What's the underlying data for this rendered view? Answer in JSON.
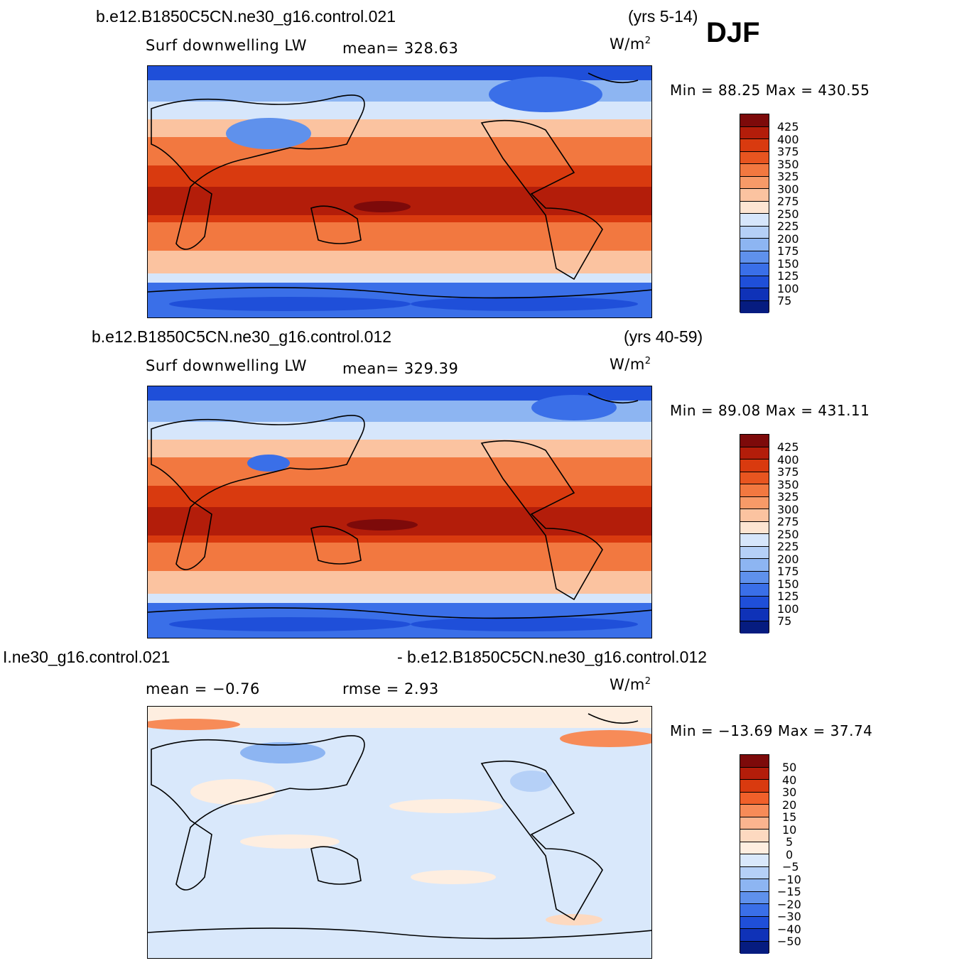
{
  "season": "DJF",
  "panels": [
    {
      "case": "b.e12.B1850C5CN.ne30_g16.control.021",
      "years": "(yrs 5-14)",
      "variable": "Surf  downwelling LW",
      "stat_text": "mean=  328.63",
      "units": "W/m",
      "units_sup": "2",
      "minmax": "Min  =    88.25  Max  =  430.55",
      "colorbar_labels": [
        "425",
        "400",
        "375",
        "350",
        "325",
        "300",
        "275",
        "250",
        "225",
        "200",
        "175",
        "150",
        "125",
        "100",
        "75"
      ]
    },
    {
      "case": "b.e12.B1850C5CN.ne30_g16.control.012",
      "years": "(yrs 40-59)",
      "variable": "Surf  downwelling LW",
      "stat_text": "mean=  329.39",
      "units": "W/m",
      "units_sup": "2",
      "minmax": "Min  =    89.08  Max  =  431.11",
      "colorbar_labels": [
        "425",
        "400",
        "375",
        "350",
        "325",
        "300",
        "275",
        "250",
        "225",
        "200",
        "175",
        "150",
        "125",
        "100",
        "75"
      ]
    },
    {
      "case_left": "І.ne30_g16.control.021",
      "case_right": "- b.e12.B1850C5CN.ne30_g16.control.012",
      "mean_text": "mean  =    −0.76",
      "rmse_text": "rmse  =     2.93",
      "units": "W/m",
      "units_sup": "2",
      "minmax": "Min  =  −13.69  Max  =    37.74",
      "colorbar_labels": [
        "50",
        "40",
        "30",
        "20",
        "15",
        "10",
        "5",
        "0",
        "−5",
        "−10",
        "−15",
        "−20",
        "−30",
        "−40",
        "−50"
      ]
    }
  ],
  "colors": {
    "abs_scale": [
      "#7d0a0a",
      "#b31d0a",
      "#d93a0f",
      "#e85520",
      "#f27840",
      "#f79a68",
      "#fbc3a0",
      "#fde5d2",
      "#d6e6fb",
      "#b5d0f7",
      "#8db5f2",
      "#5f91ec",
      "#3a6fe8",
      "#1f4fd9",
      "#0f32b8",
      "#061c80"
    ],
    "diff_scale": [
      "#7d0a0a",
      "#b31d0a",
      "#d93a0f",
      "#f0602a",
      "#f78b58",
      "#fbb48f",
      "#fdd9c0",
      "#feeee0",
      "#d9e8fb",
      "#b5d0f7",
      "#8db5f2",
      "#5f91ec",
      "#3a6fe8",
      "#1f4fd9",
      "#0f32b8",
      "#061c80"
    ]
  }
}
